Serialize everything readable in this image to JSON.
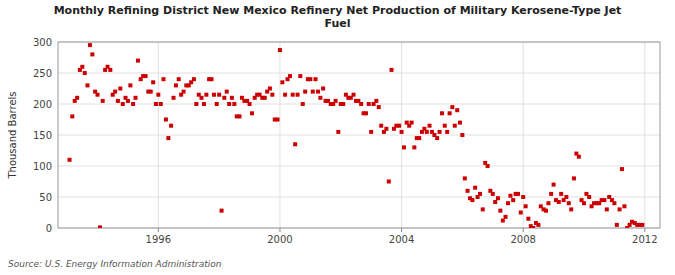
{
  "chart_data": {
    "type": "scatter",
    "title": "Monthly Refining District New Mexico Refinery Net Production of Military Kerosene-Type Jet\nFuel",
    "ylabel": "Thousand Barrels",
    "source": "Source: U.S. Energy Information Administration",
    "color": "#cc0000",
    "marker": "square",
    "grid": true,
    "xlim": [
      1992.7,
      2012.5
    ],
    "ylim": [
      0,
      300
    ],
    "xticks": [
      1996,
      2000,
      2004,
      2008,
      2012
    ],
    "yticks": [
      0,
      50,
      100,
      150,
      200,
      250,
      300
    ],
    "x": [
      1993.08,
      1993.17,
      1993.25,
      1993.33,
      1993.42,
      1993.5,
      1993.58,
      1993.67,
      1993.75,
      1993.83,
      1993.92,
      1994.0,
      1994.08,
      1994.17,
      1994.25,
      1994.33,
      1994.42,
      1994.5,
      1994.58,
      1994.67,
      1994.75,
      1994.83,
      1994.92,
      1995.0,
      1995.08,
      1995.17,
      1995.25,
      1995.33,
      1995.42,
      1995.5,
      1995.58,
      1995.67,
      1995.75,
      1995.83,
      1995.92,
      1996.0,
      1996.08,
      1996.17,
      1996.25,
      1996.33,
      1996.42,
      1996.5,
      1996.58,
      1996.67,
      1996.75,
      1996.83,
      1996.92,
      1997.0,
      1997.08,
      1997.17,
      1997.25,
      1997.33,
      1997.42,
      1997.5,
      1997.58,
      1997.67,
      1997.75,
      1997.83,
      1997.92,
      1998.0,
      1998.08,
      1998.17,
      1998.25,
      1998.33,
      1998.42,
      1998.5,
      1998.58,
      1998.67,
      1998.75,
      1998.83,
      1998.92,
      1999.0,
      1999.08,
      1999.17,
      1999.25,
      1999.33,
      1999.42,
      1999.5,
      1999.58,
      1999.67,
      1999.75,
      1999.83,
      1999.92,
      2000.0,
      2000.08,
      2000.17,
      2000.25,
      2000.33,
      2000.42,
      2000.5,
      2000.58,
      2000.67,
      2000.75,
      2000.83,
      2000.92,
      2001.0,
      2001.08,
      2001.17,
      2001.25,
      2001.33,
      2001.42,
      2001.5,
      2001.58,
      2001.67,
      2001.75,
      2001.83,
      2001.92,
      2002.0,
      2002.08,
      2002.17,
      2002.25,
      2002.33,
      2002.42,
      2002.5,
      2002.58,
      2002.67,
      2002.75,
      2002.83,
      2002.92,
      2003.0,
      2003.08,
      2003.17,
      2003.25,
      2003.33,
      2003.42,
      2003.5,
      2003.58,
      2003.67,
      2003.75,
      2003.83,
      2003.92,
      2004.0,
      2004.08,
      2004.17,
      2004.25,
      2004.33,
      2004.42,
      2004.5,
      2004.58,
      2004.67,
      2004.75,
      2004.83,
      2004.92,
      2005.0,
      2005.08,
      2005.17,
      2005.25,
      2005.33,
      2005.42,
      2005.5,
      2005.58,
      2005.67,
      2005.75,
      2005.83,
      2005.92,
      2006.0,
      2006.08,
      2006.17,
      2006.25,
      2006.33,
      2006.42,
      2006.5,
      2006.58,
      2006.67,
      2006.75,
      2006.83,
      2006.92,
      2007.0,
      2007.08,
      2007.17,
      2007.25,
      2007.33,
      2007.42,
      2007.5,
      2007.58,
      2007.67,
      2007.75,
      2007.83,
      2007.92,
      2008.0,
      2008.08,
      2008.17,
      2008.25,
      2008.33,
      2008.42,
      2008.5,
      2008.58,
      2008.67,
      2008.75,
      2008.83,
      2008.92,
      2009.0,
      2009.08,
      2009.17,
      2009.25,
      2009.33,
      2009.42,
      2009.5,
      2009.58,
      2009.67,
      2009.75,
      2009.83,
      2009.92,
      2010.0,
      2010.08,
      2010.17,
      2010.25,
      2010.33,
      2010.42,
      2010.5,
      2010.58,
      2010.67,
      2010.75,
      2010.83,
      2010.92,
      2011.0,
      2011.08,
      2011.17,
      2011.25,
      2011.33,
      2011.42,
      2011.5,
      2011.58,
      2011.67,
      2011.75,
      2011.83,
      2011.92
    ],
    "values": [
      110,
      180,
      205,
      210,
      255,
      260,
      250,
      230,
      295,
      280,
      220,
      215,
      1,
      205,
      255,
      260,
      255,
      215,
      220,
      205,
      225,
      200,
      210,
      205,
      230,
      200,
      210,
      270,
      240,
      245,
      245,
      220,
      220,
      235,
      200,
      215,
      200,
      240,
      175,
      145,
      165,
      210,
      230,
      240,
      215,
      220,
      230,
      230,
      235,
      240,
      200,
      215,
      210,
      200,
      215,
      240,
      240,
      215,
      200,
      215,
      28,
      210,
      220,
      200,
      210,
      200,
      180,
      180,
      210,
      205,
      205,
      200,
      185,
      210,
      215,
      215,
      210,
      210,
      220,
      225,
      215,
      175,
      175,
      287,
      235,
      215,
      240,
      245,
      215,
      135,
      215,
      245,
      200,
      220,
      240,
      240,
      220,
      240,
      220,
      210,
      225,
      205,
      205,
      200,
      200,
      205,
      155,
      200,
      200,
      215,
      210,
      210,
      215,
      205,
      205,
      200,
      185,
      185,
      200,
      155,
      200,
      205,
      195,
      165,
      155,
      160,
      75,
      255,
      160,
      165,
      165,
      155,
      130,
      170,
      165,
      170,
      130,
      145,
      145,
      155,
      160,
      155,
      165,
      155,
      150,
      145,
      155,
      185,
      165,
      155,
      185,
      195,
      165,
      190,
      170,
      150,
      80,
      60,
      48,
      45,
      65,
      50,
      55,
      30,
      105,
      100,
      60,
      55,
      42,
      48,
      28,
      12,
      18,
      40,
      52,
      45,
      55,
      55,
      25,
      50,
      35,
      15,
      3,
      0,
      8,
      5,
      35,
      30,
      28,
      40,
      55,
      70,
      45,
      42,
      55,
      45,
      50,
      40,
      30,
      80,
      120,
      115,
      45,
      40,
      55,
      50,
      35,
      40,
      40,
      40,
      45,
      45,
      30,
      50,
      45,
      40,
      5,
      30,
      95,
      35,
      0,
      5,
      10,
      8,
      5,
      5,
      5
    ]
  }
}
